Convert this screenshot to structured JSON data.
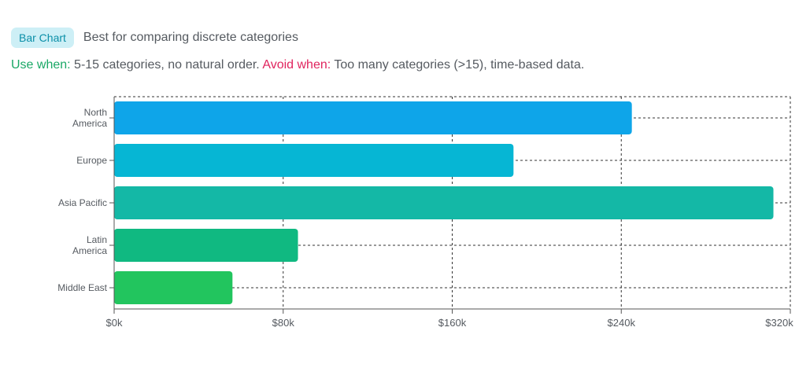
{
  "header": {
    "badge_label": "Bar Chart",
    "subtitle": "Best for comparing discrete categories"
  },
  "guidance": {
    "use_label": "Use when:",
    "use_text": "5-15 categories, no natural order.",
    "avoid_label": "Avoid when:",
    "avoid_text": "Too many categories (>15), time-based data."
  },
  "chart_data": {
    "type": "bar",
    "orientation": "horizontal",
    "categories": [
      [
        "North",
        "America"
      ],
      [
        "Europe"
      ],
      [
        "Asia Pacific"
      ],
      [
        "Latin",
        "America"
      ],
      [
        "Middle East"
      ]
    ],
    "values": [
      245000,
      189000,
      312000,
      87000,
      56000
    ],
    "colors": [
      "#0ea5e9",
      "#06b6d4",
      "#14b8a6",
      "#10b981",
      "#22c55e"
    ],
    "xlim": [
      0,
      320000
    ],
    "xticks": [
      0,
      80000,
      160000,
      240000,
      320000
    ],
    "xtick_labels": [
      "$0k",
      "$80k",
      "$160k",
      "$240k",
      "$320k"
    ],
    "grid": true,
    "grid_style": "dashed"
  }
}
